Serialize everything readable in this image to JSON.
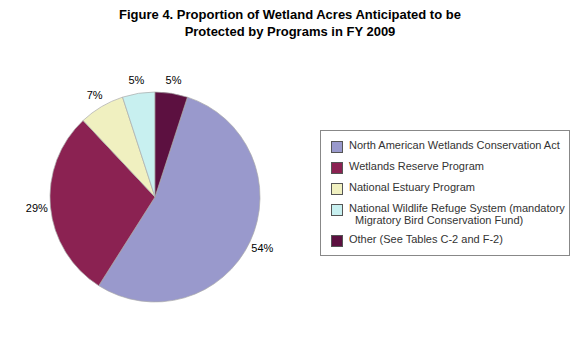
{
  "chart_data": {
    "type": "pie",
    "title": "Figure 4. Proportion of Wetland Acres Anticipated to be\nProtected by Programs in FY 2009",
    "categories": [
      "North American Wetlands Conservation Act",
      "Wetlands Reserve Program",
      "National Estuary Program",
      "National Wildlife Refuge System (mandatory\n  Migratory Bird Conservation Fund)",
      "Other (See Tables C-2 and F-2)"
    ],
    "values": [
      54,
      29,
      7,
      5,
      5
    ],
    "value_labels": [
      "54%",
      "29%",
      "7%",
      "5%",
      "5%"
    ],
    "colors": [
      "#9999cc",
      "#8b2252",
      "#f0f0c0",
      "#c8f0f0",
      "#5c1040"
    ],
    "data_labels": true,
    "legend": "right"
  }
}
